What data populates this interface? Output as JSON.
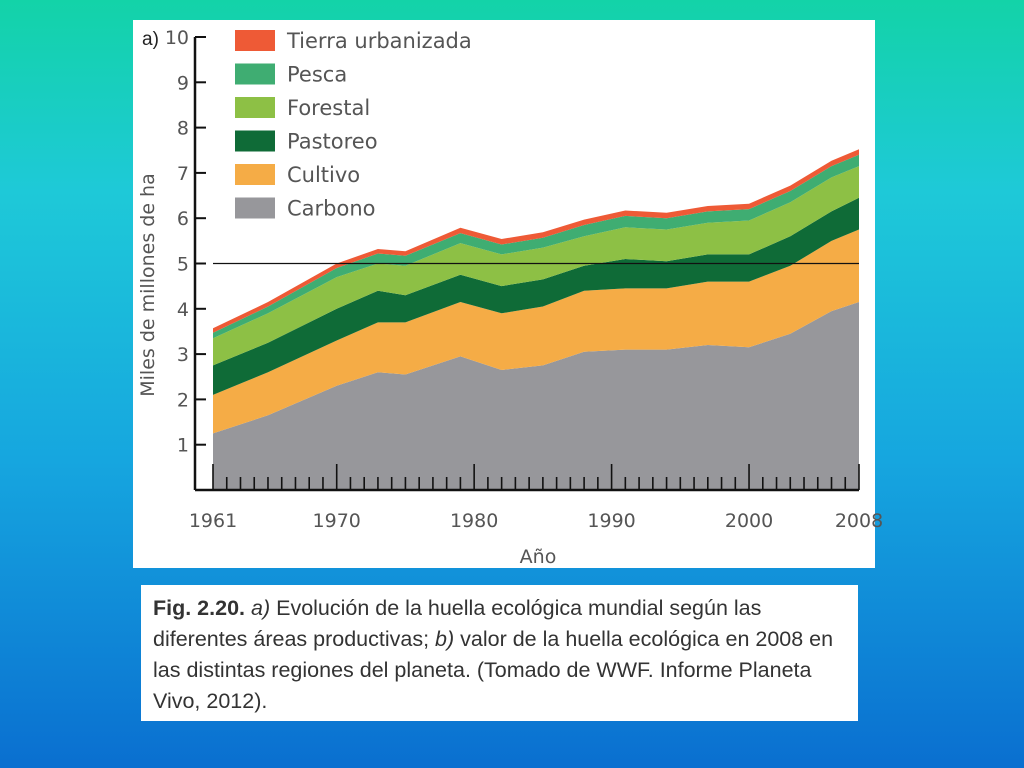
{
  "caption": {
    "fig_label": "Fig. 2.20.",
    "part_a": "a)",
    "text_a": " Evolución de la huella ecológica mundial según las diferentes áreas productivas; ",
    "part_b": "b)",
    "text_b": " valor de la huella ecológica en 2008 en las distintas regiones del planeta. (Tomado de WWF. Informe Planeta Vivo, 2012)."
  },
  "chart_data": {
    "type": "area",
    "stacked": true,
    "panel_label": "a)",
    "xlabel": "Año",
    "ylabel": "Miles de millones de ha",
    "xlim": [
      1961,
      2008
    ],
    "ylim": [
      0,
      10
    ],
    "x_ticks": [
      1961,
      1970,
      1980,
      1990,
      2000,
      2008
    ],
    "y_ticks": [
      1,
      2,
      3,
      4,
      5,
      6,
      7,
      8,
      9,
      10
    ],
    "reference_line": 5,
    "legend_position": "top-left",
    "x": [
      1961,
      1965,
      1970,
      1973,
      1975,
      1979,
      1982,
      1985,
      1988,
      1991,
      1994,
      1997,
      2000,
      2003,
      2006,
      2008
    ],
    "series": [
      {
        "name": "Carbono",
        "color": "#97979b",
        "values": [
          1.25,
          1.65,
          2.3,
          2.6,
          2.55,
          2.95,
          2.65,
          2.75,
          3.05,
          3.1,
          3.1,
          3.2,
          3.15,
          3.45,
          3.95,
          4.15
        ]
      },
      {
        "name": "Cultivo",
        "color": "#f5ac46",
        "values": [
          0.85,
          0.95,
          1.0,
          1.1,
          1.15,
          1.2,
          1.25,
          1.3,
          1.35,
          1.35,
          1.35,
          1.4,
          1.45,
          1.5,
          1.55,
          1.6
        ]
      },
      {
        "name": "Pastoreo",
        "color": "#0f6b37",
        "values": [
          0.65,
          0.65,
          0.7,
          0.7,
          0.6,
          0.6,
          0.6,
          0.6,
          0.55,
          0.65,
          0.6,
          0.6,
          0.6,
          0.65,
          0.65,
          0.7
        ]
      },
      {
        "name": "Forestal",
        "color": "#8dc045",
        "values": [
          0.6,
          0.65,
          0.7,
          0.6,
          0.65,
          0.7,
          0.7,
          0.7,
          0.65,
          0.7,
          0.7,
          0.7,
          0.75,
          0.75,
          0.75,
          0.7
        ]
      },
      {
        "name": "Pesca",
        "color": "#3fad72",
        "values": [
          0.12,
          0.15,
          0.2,
          0.22,
          0.22,
          0.22,
          0.22,
          0.22,
          0.25,
          0.25,
          0.25,
          0.25,
          0.25,
          0.25,
          0.25,
          0.25
        ]
      },
      {
        "name": "Tierra urbanizada",
        "color": "#ee5a36",
        "values": [
          0.1,
          0.1,
          0.1,
          0.1,
          0.1,
          0.12,
          0.12,
          0.12,
          0.12,
          0.12,
          0.12,
          0.12,
          0.12,
          0.12,
          0.12,
          0.12
        ]
      }
    ]
  }
}
